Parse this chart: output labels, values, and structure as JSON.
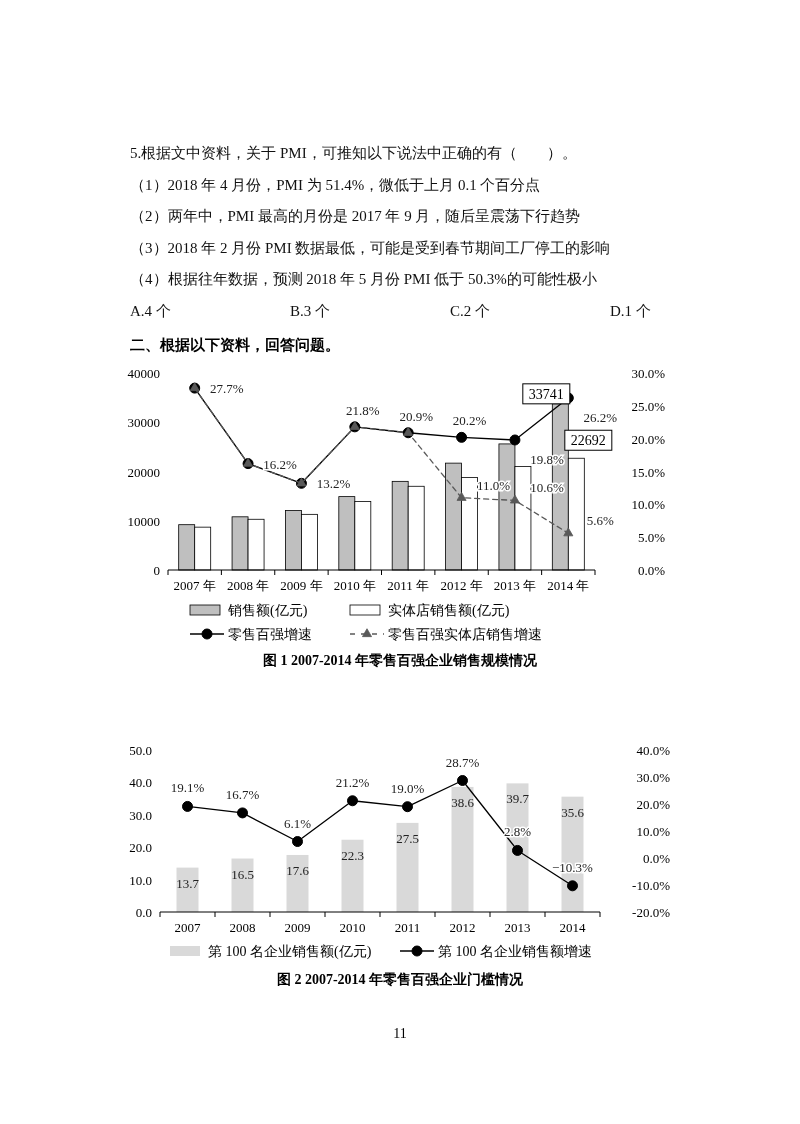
{
  "chart_data": [
    {
      "type": "other",
      "annotations": [
        "5.根据文中资料，关于 PMI，可推知以下说法中正确的有（　　）。",
        "（1）2018 年 4 月份，PMI 为 51.4%，微低于上月 0.1 个百分点",
        "（2）两年中，PMI 最高的月份是 2017 年 9 月，随后呈震荡下行趋势",
        "（3）2018 年 2 月份 PMI 数据最低，可能是受到春节期间工厂停工的影响",
        "（4）根据往年数据，预测 2018 年 5 月份 PMI 低于 50.3%的可能性极小",
        "A.4 个",
        "B.3 个",
        "C.2 个",
        "D.1 个"
      ]
    },
    {
      "type": "bar",
      "title": "二、根据以下资料，回答问题。",
      "categories": [
        "2007 年",
        "2008 年",
        "2009 年",
        "2010 年",
        "2011 年",
        "2012 年",
        "2013 年",
        "2014 年"
      ],
      "series": [
        {
          "name": "销售额(亿元)",
          "type": "bar",
          "color": "#bfbfbf",
          "values": [
            9200,
            10800,
            12100,
            14900,
            18000,
            21700,
            25600,
            33741
          ],
          "value_labels": [
            null,
            null,
            null,
            null,
            null,
            null,
            null,
            "33741"
          ]
        },
        {
          "name": "实体店销售额(亿元)",
          "type": "bar",
          "color": "#ffffff",
          "values": [
            8700,
            10300,
            11300,
            13900,
            17000,
            18800,
            21000,
            22692
          ],
          "value_labels": [
            null,
            null,
            null,
            null,
            null,
            null,
            null,
            "22692"
          ]
        },
        {
          "name": "零售百强增速",
          "type": "line",
          "axis": "y2",
          "color": "#000000",
          "marker": "circle",
          "line_style": "solid",
          "values": [
            27.7,
            16.2,
            13.2,
            21.8,
            20.9,
            20.2,
            19.8,
            26.2
          ],
          "value_labels": [
            "27.7%",
            "16.2%",
            "13.2%",
            "21.8%",
            "20.9%",
            "20.2%",
            "19.8%",
            "26.2%"
          ]
        },
        {
          "name": "零售百强实体店销售增速",
          "type": "line",
          "axis": "y2",
          "color": "#595959",
          "marker": "triangle",
          "line_style": "dashed",
          "values": [
            27.7,
            16.2,
            13.2,
            21.8,
            20.9,
            11.0,
            10.6,
            5.6
          ],
          "value_labels": [
            null,
            null,
            null,
            null,
            null,
            "11.0%",
            "10.6%",
            "5.6%"
          ]
        }
      ],
      "ylim": [
        0,
        40000
      ],
      "yticks": [
        0,
        10000,
        20000,
        30000,
        40000
      ],
      "y2lim": [
        0,
        30
      ],
      "y2ticks": [
        {
          "value": 0,
          "label": "0.0%"
        },
        {
          "value": 5,
          "label": "5.0%"
        },
        {
          "value": 10,
          "label": "10.0%"
        },
        {
          "value": 15,
          "label": "15.0%"
        },
        {
          "value": 20,
          "label": "20.0%"
        },
        {
          "value": 25,
          "label": "25.0%"
        },
        {
          "value": 30,
          "label": "30.0%"
        }
      ],
      "legend": "bottom",
      "annotations": [
        "图 1 2007-2014 年零售百强企业销售规模情况"
      ]
    },
    {
      "type": "bar",
      "categories": [
        "2007",
        "2008",
        "2009",
        "2010",
        "2011",
        "2012",
        "2013",
        "2014"
      ],
      "series": [
        {
          "name": "第 100 名企业销售额(亿元)",
          "type": "bar",
          "color": "#d9d9d9",
          "values": [
            13.7,
            16.5,
            17.6,
            22.3,
            27.5,
            38.6,
            39.7,
            35.6
          ],
          "value_labels": [
            "13.7",
            "16.5",
            "17.6",
            "22.3",
            "27.5",
            "38.6",
            "39.7",
            "35.6"
          ]
        },
        {
          "name": "第 100 名企业销售额增速",
          "type": "line",
          "axis": "y2",
          "color": "#000000",
          "marker": "circle",
          "line_style": "solid",
          "values": [
            19.1,
            16.7,
            6.1,
            21.2,
            19.0,
            28.7,
            2.8,
            -10.3
          ],
          "value_labels": [
            "19.1%",
            "16.7%",
            "6.1%",
            "21.2%",
            "19.0%",
            "28.7%",
            "2.8%",
            "−10.3%"
          ]
        }
      ],
      "ylim": [
        0,
        50
      ],
      "yticks": [
        {
          "value": 0,
          "label": "0.0"
        },
        {
          "value": 10,
          "label": "10.0"
        },
        {
          "value": 20,
          "label": "20.0"
        },
        {
          "value": 30,
          "label": "30.0"
        },
        {
          "value": 40,
          "label": "40.0"
        },
        {
          "value": 50,
          "label": "50.0"
        }
      ],
      "y2lim": [
        -20,
        40
      ],
      "y2ticks": [
        {
          "value": -20,
          "label": "-20.0%"
        },
        {
          "value": -10,
          "label": "-10.0%"
        },
        {
          "value": 0,
          "label": "0.0%"
        },
        {
          "value": 10,
          "label": "10.0%"
        },
        {
          "value": 20,
          "label": "20.0%"
        },
        {
          "value": 30,
          "label": "30.0%"
        },
        {
          "value": 40,
          "label": "40.0%"
        }
      ],
      "legend": "bottom",
      "annotations": [
        "图 2 2007-2014 年零售百强企业门槛情况",
        "11"
      ]
    }
  ]
}
